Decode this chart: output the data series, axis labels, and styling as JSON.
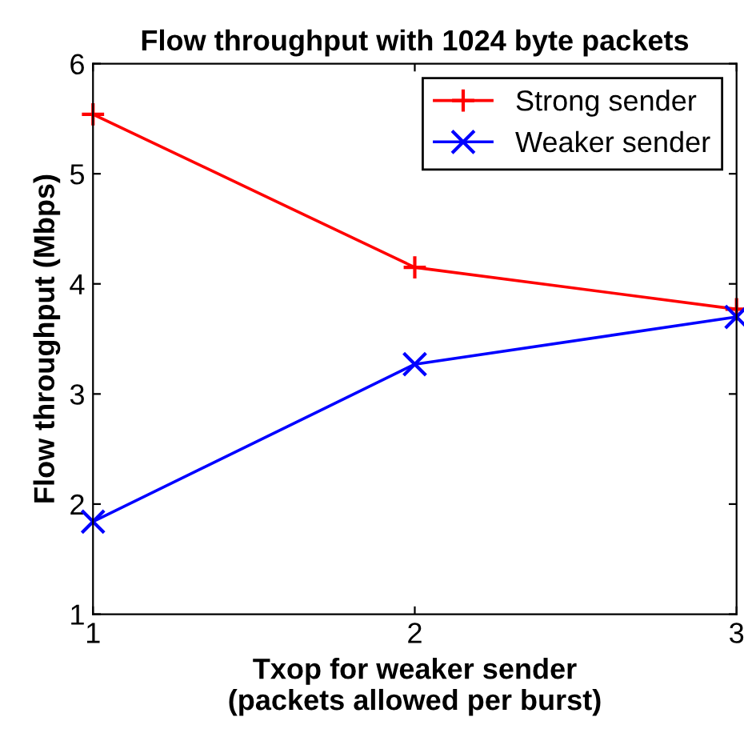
{
  "chart_data": {
    "type": "line",
    "title": "Flow throughput with 1024 byte packets",
    "xlabel": "Txop for weaker sender\n(packets allowed per burst)",
    "ylabel": "Flow throughput (Mbps)",
    "x": [
      1,
      2,
      3
    ],
    "series": [
      {
        "name": "Strong sender",
        "color": "#ff0000",
        "marker": "cross",
        "values": [
          5.54,
          4.15,
          3.77
        ]
      },
      {
        "name": "Weaker sender",
        "color": "#0000ff",
        "marker": "x",
        "values": [
          1.84,
          3.27,
          3.7
        ]
      }
    ],
    "xlim": [
      1,
      3
    ],
    "xticks": [
      1,
      2,
      3
    ],
    "ylim": [
      1,
      6
    ],
    "yticks": [
      1,
      2,
      3,
      4,
      5,
      6
    ],
    "grid": false,
    "legend": "top right",
    "line_style": "solid"
  }
}
